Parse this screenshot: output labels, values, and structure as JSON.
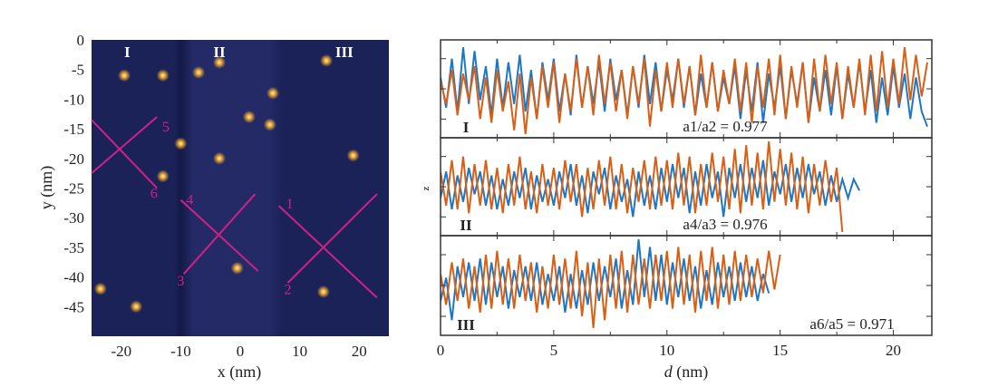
{
  "chart_data": [
    {
      "type": "heatmap",
      "xlabel": "x (nm)",
      "ylabel": "y (nm)",
      "xlim": [
        -25,
        25
      ],
      "ylim": [
        -50,
        0
      ],
      "xticks": [
        "-20",
        "-10",
        "0",
        "10",
        "20"
      ],
      "xtick_values": [
        -20,
        -10,
        0,
        10,
        20
      ],
      "yticks": [
        "0",
        "-5",
        "-10",
        "-15",
        "-20",
        "-25",
        "-30",
        "-35",
        "-40",
        "-45"
      ],
      "ytick_values": [
        0,
        -5,
        -10,
        -15,
        -20,
        -25,
        -30,
        -35,
        -40,
        -45
      ],
      "colors": {
        "background": "#1b2257",
        "band": "#232a66",
        "spot": "#f0a830",
        "line": "#d0208a",
        "region_label": "#ffffff"
      },
      "region_labels": [
        {
          "text": "I",
          "x": -19,
          "y": -2
        },
        {
          "text": "II",
          "x": -3.5,
          "y": -2
        },
        {
          "text": "III",
          "x": 17.5,
          "y": -2
        }
      ],
      "spots": [
        {
          "x": -19.5,
          "y": -6
        },
        {
          "x": -13,
          "y": -6
        },
        {
          "x": -7,
          "y": -5.5
        },
        {
          "x": -3.5,
          "y": -3.8
        },
        {
          "x": 14.5,
          "y": -3.5
        },
        {
          "x": 5.5,
          "y": -9
        },
        {
          "x": 1.5,
          "y": -13
        },
        {
          "x": 5,
          "y": -14.3
        },
        {
          "x": -10,
          "y": -17.5
        },
        {
          "x": -3.5,
          "y": -20
        },
        {
          "x": 19,
          "y": -19.5
        },
        {
          "x": -13,
          "y": -23
        },
        {
          "x": -0.5,
          "y": -38.5
        },
        {
          "x": 14,
          "y": -42.5
        },
        {
          "x": -23.5,
          "y": -42
        },
        {
          "x": -17.5,
          "y": -45
        }
      ],
      "profile_lines": [
        {
          "label": "5",
          "from": [
            -25,
            -22.5
          ],
          "to": [
            -14,
            -13
          ],
          "label_at": [
            -12.5,
            -14.5
          ]
        },
        {
          "label": "6",
          "from": [
            -25,
            -13.5
          ],
          "to": [
            -14,
            -25
          ],
          "label_at": [
            -14.5,
            -25.8
          ]
        },
        {
          "label": "4",
          "from": [
            -10,
            -27
          ],
          "to": [
            3,
            -39
          ],
          "label_at": [
            -8.5,
            -26.8
          ]
        },
        {
          "label": "3",
          "from": [
            -9.5,
            -39.5
          ],
          "to": [
            2.5,
            -26
          ],
          "label_at": [
            -10,
            -40.5
          ]
        },
        {
          "label": "1",
          "from": [
            6.5,
            -28
          ],
          "to": [
            23,
            -43.5
          ],
          "label_at": [
            8.3,
            -27.5
          ]
        },
        {
          "label": "2",
          "from": [
            8,
            -41
          ],
          "to": [
            23,
            -26
          ],
          "label_at": [
            8,
            -42
          ]
        }
      ]
    },
    {
      "type": "line",
      "xlabel_italic": "d",
      "xlabel_unit": " (nm)",
      "ylabel": "z",
      "xlim": [
        0,
        21.7
      ],
      "ylim": [
        -12,
        12
      ],
      "xticks": [
        "0",
        "5",
        "10",
        "15",
        "20"
      ],
      "xtick_values": [
        0,
        5,
        10,
        15,
        20
      ],
      "x_step": 0.25,
      "colors": {
        "blue": "#1f77c4",
        "orange": "#d95f14"
      },
      "panels": [
        {
          "label": "I",
          "ratio": "a1/a2 = 0.977",
          "series": [
            {
              "color": "blue",
              "values": [
                3,
                -5,
                8,
                -6,
                11,
                -4,
                10,
                -3,
                6,
                -7,
                8,
                -5,
                7,
                -4,
                9,
                -6,
                5,
                -8,
                7,
                -3,
                8,
                -6,
                4,
                -7,
                9,
                -5,
                6,
                -4,
                7,
                -6,
                8,
                -3,
                5,
                -7,
                6,
                -5,
                9,
                -4,
                7,
                -6,
                5,
                -3,
                8,
                -5,
                6,
                -7,
                4,
                -5,
                7,
                -6,
                3,
                -4,
                6,
                -8,
                5,
                -6,
                7,
                -9,
                4,
                -5,
                6,
                -8,
                5,
                -4,
                7,
                -9,
                3,
                -6,
                5,
                -7,
                6,
                -8,
                4,
                -5,
                7,
                -6,
                5,
                -9,
                3,
                -7,
                6,
                -5,
                4,
                -8,
                3,
                -6,
                -10
              ]
            },
            {
              "color": "orange",
              "values": [
                2,
                -4,
                5,
                -7,
                4,
                -3,
                6,
                -8,
                3,
                -9,
                5,
                -6,
                2,
                -11,
                4,
                -12,
                3,
                -8,
                6,
                -5,
                7,
                -9,
                4,
                -6,
                8,
                -5,
                6,
                -7,
                9,
                -4,
                7,
                -6,
                5,
                -8,
                6,
                -4,
                8,
                -10,
                5,
                -6,
                7,
                -5,
                8,
                -4,
                6,
                -7,
                9,
                -5,
                7,
                -6,
                5,
                -4,
                8,
                -6,
                7,
                -9,
                6,
                -5,
                8,
                -7,
                9,
                -8,
                6,
                -5,
                7,
                -9,
                8,
                -6,
                9,
                -4,
                7,
                -8,
                6,
                -5,
                8,
                -7,
                9,
                -6,
                10,
                -5,
                8,
                -4,
                11,
                -3,
                9,
                -2,
                7
              ]
            }
          ]
        },
        {
          "label": "II",
          "ratio": "a4/a3 = 0.976",
          "series": [
            {
              "color": "blue",
              "values": [
                -3,
                4,
                -6,
                3,
                -4,
                5,
                -2,
                4,
                -5,
                3,
                -6,
                2,
                -5,
                4,
                -3,
                5,
                -6,
                3,
                -4,
                2,
                -5,
                4,
                -3,
                6,
                -5,
                3,
                -7,
                4,
                -2,
                5,
                -6,
                3,
                -4,
                2,
                -8,
                4,
                -5,
                3,
                -6,
                5,
                -4,
                6,
                -3,
                5,
                -7,
                4,
                -5,
                6,
                -3,
                4,
                -8,
                5,
                -3,
                6,
                -4,
                5,
                -3,
                7,
                -5,
                4,
                -2,
                6,
                -4,
                5,
                -3,
                6,
                -2,
                4,
                -5,
                3,
                -4,
                2,
                -3,
                2,
                -1
              ]
            },
            {
              "color": "orange",
              "values": [
                4,
                -5,
                7,
                -6,
                8,
                -7,
                6,
                -5,
                7,
                -6,
                5,
                -7,
                6,
                -5,
                8,
                -6,
                4,
                -7,
                6,
                -5,
                5,
                -6,
                7,
                -4,
                6,
                -8,
                5,
                -6,
                7,
                -5,
                8,
                -6,
                6,
                -7,
                5,
                -4,
                7,
                -6,
                8,
                -5,
                7,
                -6,
                9,
                -5,
                8,
                -7,
                6,
                -5,
                9,
                -4,
                8,
                -6,
                10,
                -7,
                11,
                -5,
                9,
                -6,
                12,
                -4,
                10,
                -5,
                9,
                -6,
                8,
                -7,
                6,
                -5,
                7,
                -4,
                5,
                -12
              ]
            }
          ]
        },
        {
          "label": "III",
          "ratio": "a6/a5 = 0.971",
          "series": [
            {
              "color": "blue",
              "values": [
                -4,
                2,
                -9,
                5,
                -3,
                6,
                -4,
                7,
                -5,
                6,
                -3,
                5,
                -6,
                4,
                -3,
                5,
                -4,
                6,
                -5,
                3,
                -4,
                5,
                -7,
                3,
                -6,
                4,
                -5,
                6,
                -4,
                5,
                -3,
                7,
                -6,
                4,
                -5,
                12,
                -3,
                10,
                -4,
                8,
                -5,
                6,
                -3,
                7,
                -4,
                5,
                -6,
                4,
                -5,
                6,
                -3,
                5,
                -4,
                6,
                -3,
                5,
                -4,
                3,
                -2
              ]
            },
            {
              "color": "orange",
              "values": [
                3,
                -5,
                6,
                -4,
                7,
                -6,
                5,
                -7,
                8,
                -6,
                9,
                -5,
                7,
                -6,
                8,
                -4,
                6,
                -7,
                5,
                -6,
                8,
                -5,
                7,
                -6,
                9,
                -8,
                6,
                -11,
                7,
                -9,
                8,
                -6,
                9,
                -7,
                8,
                -5,
                7,
                -6,
                8,
                -4,
                9,
                -6,
                10,
                -5,
                8,
                -7,
                9,
                -4,
                10,
                -6,
                8,
                -5,
                9,
                -4,
                8,
                -3,
                7,
                -2,
                9,
                -1,
                8
              ]
            }
          ]
        }
      ]
    }
  ]
}
